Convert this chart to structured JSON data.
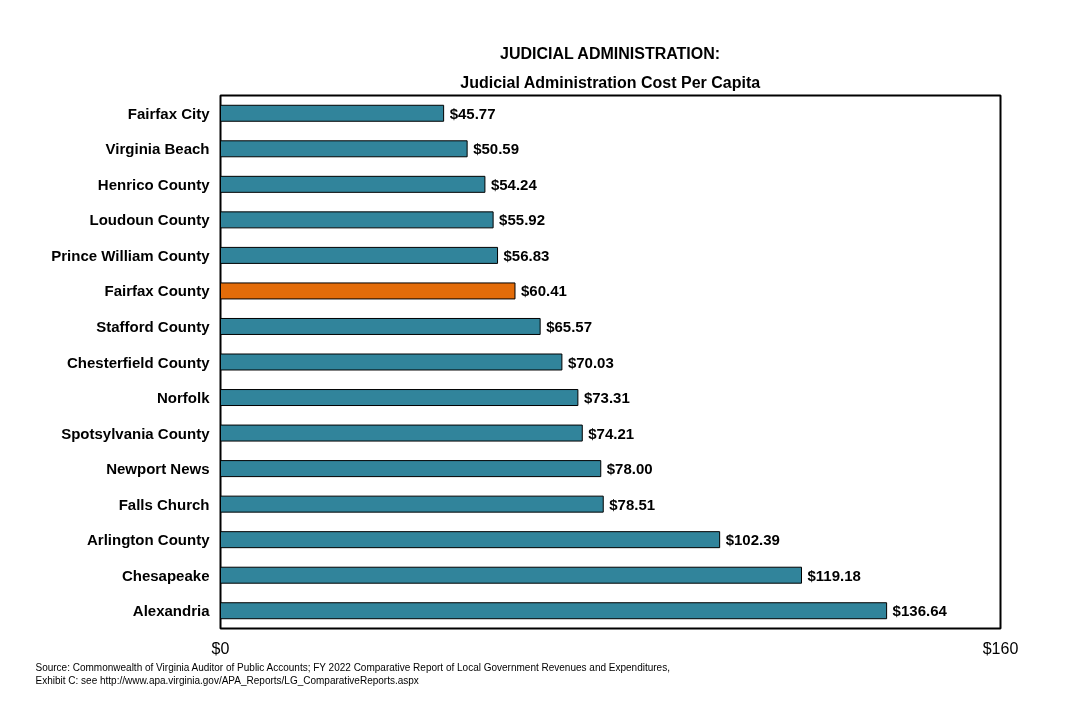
{
  "chart_data": {
    "type": "bar",
    "orientation": "horizontal",
    "title": "JUDICIAL ADMINISTRATION:",
    "subtitle": "Judicial Administration Cost Per Capita",
    "categories": [
      "Fairfax City",
      "Virginia Beach",
      "Henrico County",
      "Loudoun County",
      "Prince William County",
      "Fairfax County",
      "Stafford County",
      "Chesterfield County",
      "Norfolk",
      "Spotsylvania County",
      "Newport News",
      "Falls Church",
      "Arlington County",
      "Chesapeake",
      "Alexandria"
    ],
    "values": [
      45.77,
      50.59,
      54.24,
      55.92,
      56.83,
      60.41,
      65.57,
      70.03,
      73.31,
      74.21,
      78.0,
      78.51,
      102.39,
      119.18,
      136.64
    ],
    "colors": [
      "#31849b",
      "#31849b",
      "#31849b",
      "#31849b",
      "#31849b",
      "#e36c09",
      "#31849b",
      "#31849b",
      "#31849b",
      "#31849b",
      "#31849b",
      "#31849b",
      "#31849b",
      "#31849b",
      "#31849b"
    ],
    "value_labels": [
      "$45.77",
      "$50.59",
      "$54.24",
      "$55.92",
      "$56.83",
      "$60.41",
      "$65.57",
      "$70.03",
      "$73.31",
      "$74.21",
      "$78.00",
      "$78.51",
      "$102.39",
      "$119.18",
      "$136.64"
    ],
    "xlim": [
      0,
      160
    ],
    "xticks": [
      {
        "value": 0,
        "label": "$0"
      },
      {
        "value": 160,
        "label": "$160"
      }
    ],
    "grid": false,
    "annotations": [
      "Source: Commonwealth of Virginia Auditor of Public Accounts; FY 2022 Comparative Report of Local Government Revenues and Expenditures,",
      "Exhibit C: see http://www.apa.virginia.gov/APA_Reports/LG_ComparativeReports.aspx"
    ]
  }
}
